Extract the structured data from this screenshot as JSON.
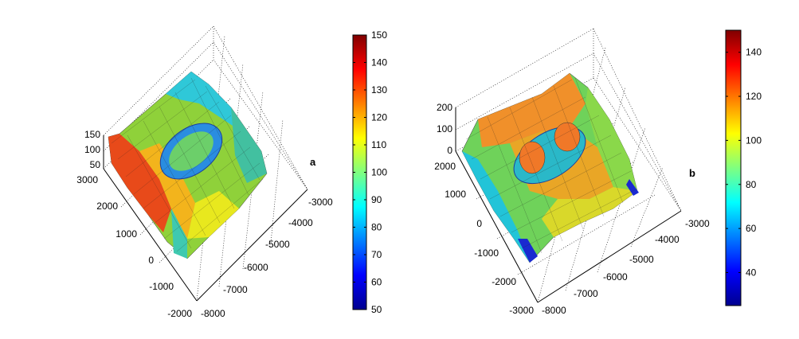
{
  "chart_data": [
    {
      "type": "surface3d",
      "panel_label": "a",
      "z_ticks": [
        "50",
        "100",
        "150"
      ],
      "x_ticks": [
        "3000",
        "2000",
        "1000",
        "0",
        "-1000",
        "-2000"
      ],
      "y_ticks": [
        "-8000",
        "-7000",
        "-6000",
        "-5000",
        "-4000",
        "-3000"
      ],
      "x_range": [
        -2000,
        3000
      ],
      "y_range": [
        -8000,
        -3000
      ],
      "z_range": [
        50,
        150
      ],
      "colorbar": {
        "colormap": "jet",
        "range": [
          50,
          150
        ],
        "ticks": [
          "50",
          "60",
          "70",
          "80",
          "90",
          "100",
          "110",
          "120",
          "130",
          "140",
          "150"
        ]
      },
      "grid": true
    },
    {
      "type": "surface3d",
      "panel_label": "b",
      "z_ticks": [
        "0",
        "100",
        "200"
      ],
      "x_ticks": [
        "2000",
        "1000",
        "0",
        "-1000",
        "-2000",
        "-3000"
      ],
      "y_ticks": [
        "-8000",
        "-7000",
        "-6000",
        "-5000",
        "-4000",
        "-3000"
      ],
      "x_range": [
        -3000,
        2000
      ],
      "y_range": [
        -8000,
        -3000
      ],
      "z_range": [
        0,
        200
      ],
      "colorbar": {
        "colormap": "jet",
        "range": [
          25,
          150
        ],
        "ticks": [
          "40",
          "60",
          "80",
          "100",
          "120",
          "140"
        ]
      },
      "grid": true
    }
  ],
  "colors": {
    "jet": [
      "#00008f",
      "#0000ff",
      "#00ffff",
      "#ffff00",
      "#ff0000",
      "#800000"
    ],
    "axis": "#000000"
  }
}
